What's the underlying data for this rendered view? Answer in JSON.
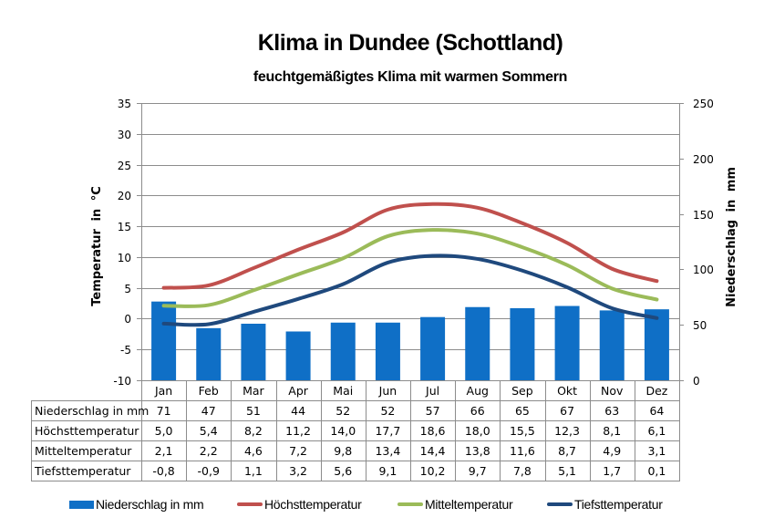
{
  "header": {
    "title": "Klima in Dundee (Schottland)",
    "subtitle": "feuchtgemäßigtes Klima mit warmen Sommern"
  },
  "colors": {
    "precipitation": "#0F6FC6",
    "high": "#C0504D",
    "mean": "#9BBB59",
    "low": "#1F497D",
    "grid": "#8C8C8C"
  },
  "chart_data": {
    "type": "bar+line",
    "title": "Klima in Dundee (Schottland)",
    "subtitle": "feuchtgemäßigtes Klima mit warmen Sommern",
    "categories": [
      "Jan",
      "Feb",
      "Mar",
      "Apr",
      "Mai",
      "Jun",
      "Jul",
      "Aug",
      "Sep",
      "Okt",
      "Nov",
      "Dez"
    ],
    "ylabel_left": "Temperatur in °C",
    "ylabel_right": "Niederschlag in mm",
    "ylim_left": [
      -10,
      35
    ],
    "yticks_left": [
      "35",
      "30",
      "25",
      "20",
      "15",
      "10",
      "5",
      "0",
      "-5",
      "-10"
    ],
    "yticks_left_values": [
      35,
      30,
      25,
      20,
      15,
      10,
      5,
      0,
      -5,
      -10
    ],
    "ylim_right": [
      0,
      250
    ],
    "yticks_right": [
      "250",
      "200",
      "150",
      "100",
      "50",
      "0"
    ],
    "yticks_right_values": [
      250,
      200,
      150,
      100,
      50,
      0
    ],
    "grid": true,
    "legend_position": "bottom",
    "series": [
      {
        "name": "Niederschlag in mm",
        "type": "bar",
        "axis": "right",
        "color": "#0F6FC6",
        "values": [
          71,
          47,
          51,
          44,
          52,
          52,
          57,
          66,
          65,
          67,
          63,
          64
        ],
        "labels": [
          "71",
          "47",
          "51",
          "44",
          "52",
          "52",
          "57",
          "66",
          "65",
          "67",
          "63",
          "64"
        ]
      },
      {
        "name": "Höchsttemperatur",
        "type": "line",
        "axis": "left",
        "color": "#C0504D",
        "values": [
          5.0,
          5.4,
          8.2,
          11.2,
          14.0,
          17.7,
          18.6,
          18.0,
          15.5,
          12.3,
          8.1,
          6.1
        ],
        "labels": [
          "5,0",
          "5,4",
          "8,2",
          "11,2",
          "14,0",
          "17,7",
          "18,6",
          "18,0",
          "15,5",
          "12,3",
          "8,1",
          "6,1"
        ]
      },
      {
        "name": "Mitteltemperatur",
        "type": "line",
        "axis": "left",
        "color": "#9BBB59",
        "values": [
          2.1,
          2.2,
          4.6,
          7.2,
          9.8,
          13.4,
          14.4,
          13.8,
          11.6,
          8.7,
          4.9,
          3.1
        ],
        "labels": [
          "2,1",
          "2,2",
          "4,6",
          "7,2",
          "9,8",
          "13,4",
          "14,4",
          "13,8",
          "11,6",
          "8,7",
          "4,9",
          "3,1"
        ]
      },
      {
        "name": "Tiefsttemperatur",
        "type": "line",
        "axis": "left",
        "color": "#1F497D",
        "values": [
          -0.8,
          -0.9,
          1.1,
          3.2,
          5.6,
          9.1,
          10.2,
          9.7,
          7.8,
          5.1,
          1.7,
          0.1
        ],
        "labels": [
          "-0,8",
          "-0,9",
          "1,1",
          "3,2",
          "5,6",
          "9,1",
          "10,2",
          "9,7",
          "7,8",
          "5,1",
          "1,7",
          "0,1"
        ]
      }
    ]
  },
  "legend": [
    {
      "label": "Niederschlag in mm",
      "icon": "bar-swatch"
    },
    {
      "label": "Höchsttemperatur",
      "icon": "line-swatch"
    },
    {
      "label": "Mitteltemperatur",
      "icon": "line-swatch"
    },
    {
      "label": "Tiefsttemperatur",
      "icon": "line-swatch"
    }
  ]
}
